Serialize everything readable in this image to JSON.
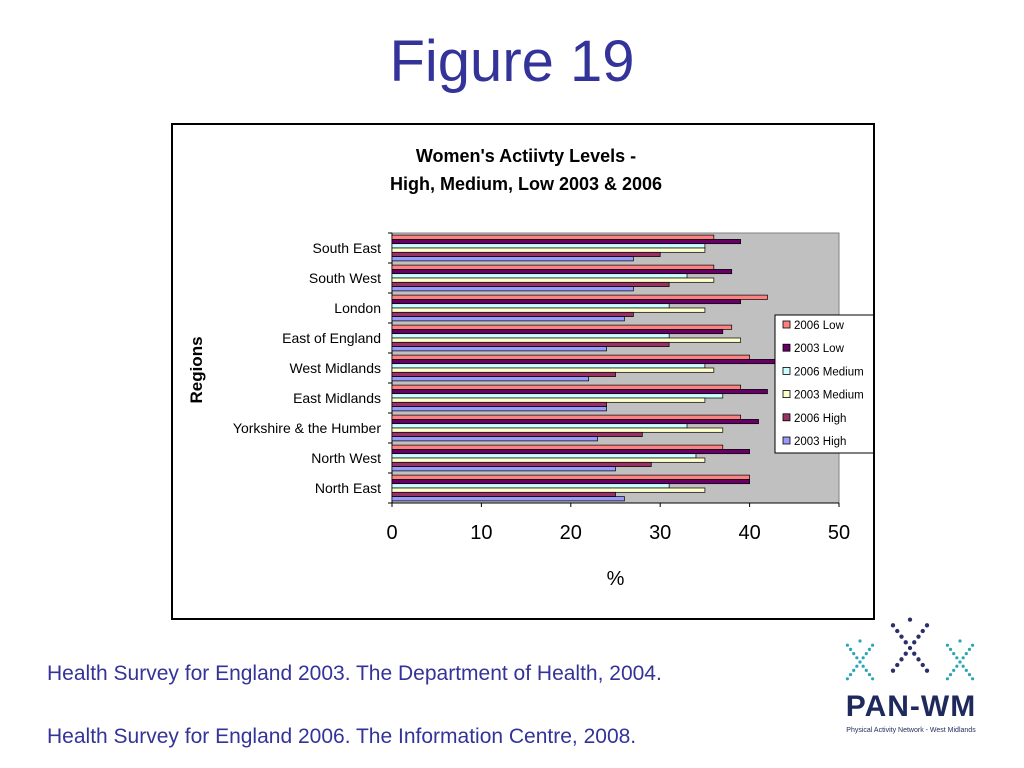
{
  "slide": {
    "title": "Figure 19",
    "sources": [
      "Health Survey for England 2003. The Department of Health, 2004.",
      "Health Survey for England 2006. The Information Centre, 2008."
    ]
  },
  "logo": {
    "text": "PAN-WM",
    "subtitle": "Physical Activity Network - West Midlands",
    "colors": {
      "outer": "#2aa6b4",
      "center": "#2b2f6b"
    }
  },
  "chart_data": {
    "type": "bar",
    "orientation": "horizontal",
    "title": "Women's Actiivty Levels -",
    "subtitle": "High, Medium, Low 2003 & 2006",
    "xlabel": "%",
    "ylabel": "Regions",
    "xlim": [
      0,
      50
    ],
    "xticks": [
      "0",
      "10",
      "20",
      "30",
      "40",
      "50"
    ],
    "grid": false,
    "legend_position": "right",
    "categories": [
      "South East",
      "South West",
      "London",
      "East of England",
      "West Midlands",
      "East Midlands",
      "Yorkshire & the Humber",
      "North West",
      "North East"
    ],
    "series": [
      {
        "name": "2006 Low",
        "color": "#ff8080",
        "values": [
          36,
          36,
          42,
          38,
          40,
          39,
          39,
          37,
          40
        ]
      },
      {
        "name": "2003 Low",
        "color": "#660066",
        "values": [
          39,
          38,
          39,
          37,
          43,
          42,
          41,
          40,
          40
        ]
      },
      {
        "name": "2006 Medium",
        "color": "#ccffff",
        "values": [
          35,
          33,
          31,
          31,
          35,
          37,
          33,
          34,
          31
        ]
      },
      {
        "name": "2003 Medium",
        "color": "#ffffcc",
        "values": [
          35,
          36,
          35,
          39,
          36,
          35,
          37,
          35,
          35
        ]
      },
      {
        "name": "2006 High",
        "color": "#993366",
        "values": [
          30,
          31,
          27,
          31,
          25,
          24,
          28,
          29,
          25
        ]
      },
      {
        "name": "2003 High",
        "color": "#9999ff",
        "values": [
          27,
          27,
          26,
          24,
          22,
          24,
          23,
          25,
          26
        ]
      }
    ]
  }
}
